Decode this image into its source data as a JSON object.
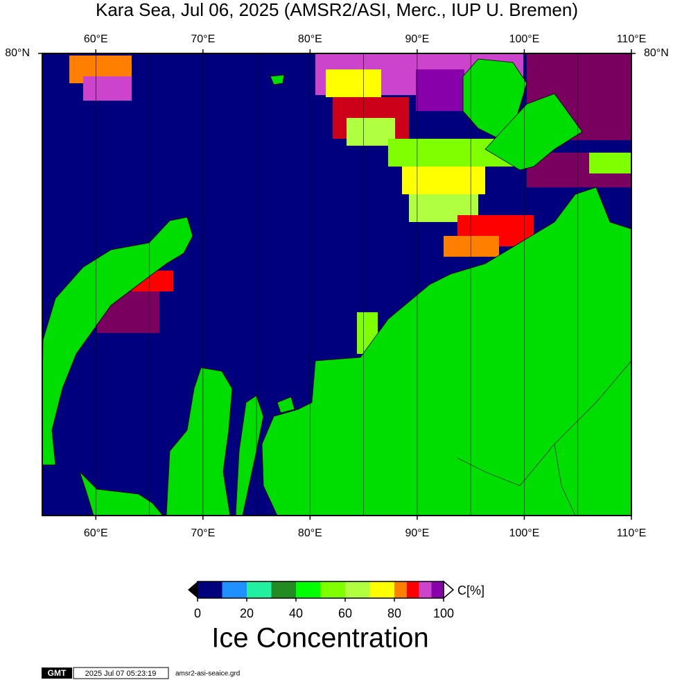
{
  "map": {
    "title": "Kara Sea, Jul 06, 2025 (AMSR2/ASI, Merc., IUP U. Bremen)",
    "xlim": [
      55,
      110
    ],
    "ylim": [
      68.5,
      80
    ],
    "xticks": [
      {
        "value": 60,
        "label": "60°E"
      },
      {
        "value": 70,
        "label": "70°E"
      },
      {
        "value": 80,
        "label": "80°E"
      },
      {
        "value": 90,
        "label": "90°E"
      },
      {
        "value": 100,
        "label": "100°E"
      },
      {
        "value": 110,
        "label": "110°E"
      }
    ],
    "xminor": [
      65,
      75,
      85,
      95,
      105
    ],
    "yticks": [
      {
        "value": 80,
        "label": "80°N"
      }
    ]
  },
  "colorbar": {
    "unit_label": "C[%]",
    "title": "Ice Concentration",
    "ticks": [
      0,
      20,
      40,
      60,
      80,
      100
    ],
    "bounds": [
      0,
      10,
      20,
      30,
      40,
      50,
      60,
      70,
      80,
      85,
      90,
      95,
      100
    ],
    "colors": [
      "#00007f",
      "#1e90ff",
      "#20f0a0",
      "#228b22",
      "#00ff00",
      "#7fff00",
      "#b0ff40",
      "#ffff00",
      "#ff8000",
      "#ff0000",
      "#cc44cc",
      "#8800aa"
    ]
  },
  "footer": {
    "logo": "GMT",
    "timestamp": "2025 Jul 07 05:23:19",
    "file": "amsr2-asi-seaice.grd"
  }
}
